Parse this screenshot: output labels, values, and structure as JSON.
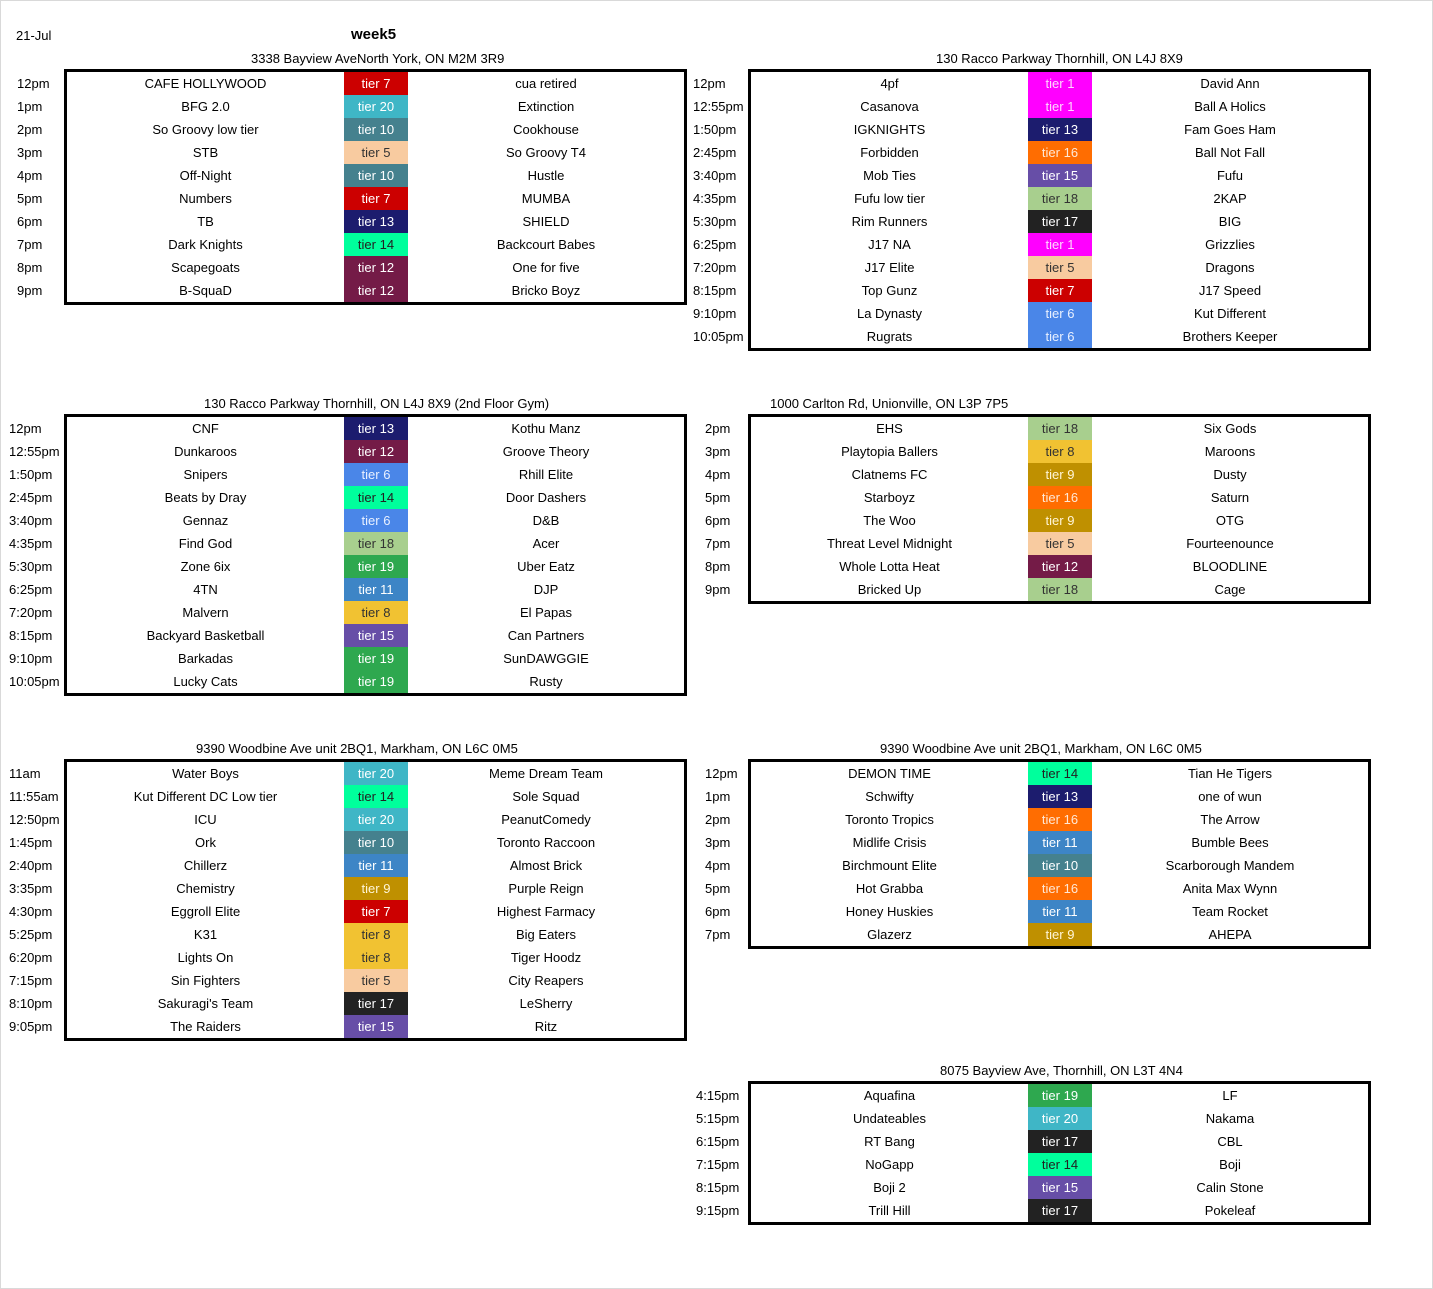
{
  "header": {
    "date": "21-Jul",
    "week": "week5"
  },
  "tier_colors": {
    "tier 1": "#ff00ff",
    "tier 5": "#f8cba0",
    "tier 6": "#4a86e8",
    "tier 7": "#cc0000",
    "tier 8": "#f1c232",
    "tier 9": "#bf9000",
    "tier 10": "#45818e",
    "tier 11": "#3d85c6",
    "tier 12": "#741b47",
    "tier 13": "#1c1c6e",
    "tier 14": "#00ff9c",
    "tier 15": "#674ea7",
    "tier 16": "#ff6d01",
    "tier 17": "#222222",
    "tier 18": "#a8cf8e",
    "tier 19": "#2ea84f",
    "tier 20": "#3fb6c6"
  },
  "venues": [
    {
      "address": "3338 Bayview AveNorth York, ON M2M 3R9",
      "games": [
        {
          "time": "12pm",
          "team1": "CAFE HOLLYWOOD",
          "tier": "tier 7",
          "team2": "cua retired"
        },
        {
          "time": "1pm",
          "team1": "BFG 2.0",
          "tier": "tier 20",
          "team2": "Extinction"
        },
        {
          "time": "2pm",
          "team1": "So Groovy low tier",
          "tier": "tier 10",
          "team2": "Cookhouse"
        },
        {
          "time": "3pm",
          "team1": "STB",
          "tier": "tier 5",
          "team2": "So Groovy T4"
        },
        {
          "time": "4pm",
          "team1": "Off-Night",
          "tier": "tier 10",
          "team2": "Hustle"
        },
        {
          "time": "5pm",
          "team1": "Numbers",
          "tier": "tier 7",
          "team2": "MUMBA"
        },
        {
          "time": "6pm",
          "team1": "TB",
          "tier": "tier 13",
          "team2": "SHIELD"
        },
        {
          "time": "7pm",
          "team1": "Dark Knights",
          "tier": "tier 14",
          "team2": "Backcourt Babes"
        },
        {
          "time": "8pm",
          "team1": "Scapegoats",
          "tier": "tier 12",
          "team2": "One for five"
        },
        {
          "time": "9pm",
          "team1": "B-SquaD",
          "tier": "tier 12",
          "team2": "Bricko Boyz"
        }
      ]
    },
    {
      "address": "130 Racco Parkway Thornhill, ON L4J 8X9",
      "games": [
        {
          "time": "12pm",
          "team1": "4pf",
          "tier": "tier 1",
          "team2": "David Ann"
        },
        {
          "time": "12:55pm",
          "team1": "Casanova",
          "tier": "tier 1",
          "team2": "Ball A Holics"
        },
        {
          "time": "1:50pm",
          "team1": "IGKNIGHTS",
          "tier": "tier 13",
          "team2": "Fam Goes Ham"
        },
        {
          "time": "2:45pm",
          "team1": "Forbidden",
          "tier": "tier 16",
          "team2": "Ball Not Fall"
        },
        {
          "time": "3:40pm",
          "team1": "Mob Ties",
          "tier": "tier 15",
          "team2": "Fufu"
        },
        {
          "time": "4:35pm",
          "team1": "Fufu low tier",
          "tier": "tier 18",
          "team2": "2KAP"
        },
        {
          "time": "5:30pm",
          "team1": "Rim Runners",
          "tier": "tier 17",
          "team2": "BIG"
        },
        {
          "time": "6:25pm",
          "team1": "J17 NA",
          "tier": "tier 1",
          "team2": "Grizzlies"
        },
        {
          "time": "7:20pm",
          "team1": "J17 Elite",
          "tier": "tier 5",
          "team2": "Dragons"
        },
        {
          "time": "8:15pm",
          "team1": "Top Gunz",
          "tier": "tier 7",
          "team2": "J17 Speed"
        },
        {
          "time": "9:10pm",
          "team1": "La Dynasty",
          "tier": "tier 6",
          "team2": "Kut Different"
        },
        {
          "time": "10:05pm",
          "team1": "Rugrats",
          "tier": "tier 6",
          "team2": "Brothers Keeper"
        }
      ]
    },
    {
      "address": "130 Racco Parkway Thornhill, ON L4J 8X9 (2nd Floor Gym)",
      "games": [
        {
          "time": "12pm",
          "team1": "CNF",
          "tier": "tier 13",
          "team2": "Kothu Manz"
        },
        {
          "time": "12:55pm",
          "team1": "Dunkaroos",
          "tier": "tier 12",
          "team2": "Groove Theory"
        },
        {
          "time": "1:50pm",
          "team1": "Snipers",
          "tier": "tier 6",
          "team2": "Rhill Elite"
        },
        {
          "time": "2:45pm",
          "team1": "Beats by Dray",
          "tier": "tier 14",
          "team2": "Door Dashers"
        },
        {
          "time": "3:40pm",
          "team1": "Gennaz",
          "tier": "tier 6",
          "team2": "D&B"
        },
        {
          "time": "4:35pm",
          "team1": "Find God",
          "tier": "tier 18",
          "team2": "Acer"
        },
        {
          "time": "5:30pm",
          "team1": "Zone 6ix",
          "tier": "tier 19",
          "team2": "Uber Eatz"
        },
        {
          "time": "6:25pm",
          "team1": "4TN",
          "tier": "tier 11",
          "team2": "DJP"
        },
        {
          "time": "7:20pm",
          "team1": "Malvern",
          "tier": "tier 8",
          "team2": "El Papas"
        },
        {
          "time": "8:15pm",
          "team1": "Backyard Basketball",
          "tier": "tier 15",
          "team2": "Can Partners"
        },
        {
          "time": "9:10pm",
          "team1": "Barkadas",
          "tier": "tier 19",
          "team2": "SunDAWGGIE"
        },
        {
          "time": "10:05pm",
          "team1": "Lucky Cats",
          "tier": "tier 19",
          "team2": "Rusty"
        }
      ]
    },
    {
      "address": "1000 Carlton Rd, Unionville, ON L3P 7P5",
      "games": [
        {
          "time": "2pm",
          "team1": "EHS",
          "tier": "tier 18",
          "team2": "Six Gods"
        },
        {
          "time": "3pm",
          "team1": "Playtopia Ballers",
          "tier": "tier 8",
          "team2": "Maroons"
        },
        {
          "time": "4pm",
          "team1": "Clatnems FC",
          "tier": "tier 9",
          "team2": "Dusty"
        },
        {
          "time": "5pm",
          "team1": "Starboyz",
          "tier": "tier 16",
          "team2": "Saturn"
        },
        {
          "time": "6pm",
          "team1": "The Woo",
          "tier": "tier 9",
          "team2": "OTG"
        },
        {
          "time": "7pm",
          "team1": "Threat Level Midnight",
          "tier": "tier 5",
          "team2": "Fourteenounce"
        },
        {
          "time": "8pm",
          "team1": "Whole Lotta Heat",
          "tier": "tier 12",
          "team2": "BLOODLINE"
        },
        {
          "time": "9pm",
          "team1": "Bricked Up",
          "tier": "tier 18",
          "team2": "Cage"
        }
      ]
    },
    {
      "address": "9390 Woodbine Ave unit 2BQ1, Markham, ON L6C 0M5",
      "games": [
        {
          "time": "11am",
          "team1": "Water Boys",
          "tier": "tier 20",
          "team2": "Meme Dream Team"
        },
        {
          "time": "11:55am",
          "team1": "Kut Different DC Low tier",
          "tier": "tier 14",
          "team2": "Sole Squad"
        },
        {
          "time": "12:50pm",
          "team1": "ICU",
          "tier": "tier 20",
          "team2": "PeanutComedy"
        },
        {
          "time": "1:45pm",
          "team1": "Ork",
          "tier": "tier 10",
          "team2": "Toronto Raccoon"
        },
        {
          "time": "2:40pm",
          "team1": "Chillerz",
          "tier": "tier 11",
          "team2": "Almost Brick"
        },
        {
          "time": "3:35pm",
          "team1": "Chemistry",
          "tier": "tier 9",
          "team2": "Purple Reign"
        },
        {
          "time": "4:30pm",
          "team1": "Eggroll Elite",
          "tier": "tier 7",
          "team2": "Highest Farmacy"
        },
        {
          "time": "5:25pm",
          "team1": "K31",
          "tier": "tier 8",
          "team2": "Big Eaters"
        },
        {
          "time": "6:20pm",
          "team1": "Lights On",
          "tier": "tier 8",
          "team2": "Tiger Hoodz"
        },
        {
          "time": "7:15pm",
          "team1": "Sin Fighters",
          "tier": "tier 5",
          "team2": "City Reapers"
        },
        {
          "time": "8:10pm",
          "team1": "Sakuragi's Team",
          "tier": "tier 17",
          "team2": "LeSherry"
        },
        {
          "time": "9:05pm",
          "team1": "The Raiders",
          "tier": "tier 15",
          "team2": "Ritz"
        }
      ]
    },
    {
      "address": "9390 Woodbine Ave unit 2BQ1, Markham, ON L6C 0M5",
      "games": [
        {
          "time": "12pm",
          "team1": "DEMON TIME",
          "tier": "tier 14",
          "team2": "Tian He Tigers"
        },
        {
          "time": "1pm",
          "team1": "Schwifty",
          "tier": "tier 13",
          "team2": "one of wun"
        },
        {
          "time": "2pm",
          "team1": "Toronto Tropics",
          "tier": "tier 16",
          "team2": "The Arrow"
        },
        {
          "time": "3pm",
          "team1": "Midlife Crisis",
          "tier": "tier 11",
          "team2": "Bumble Bees"
        },
        {
          "time": "4pm",
          "team1": "Birchmount Elite",
          "tier": "tier 10",
          "team2": "Scarborough Mandem"
        },
        {
          "time": "5pm",
          "team1": "Hot Grabba",
          "tier": "tier 16",
          "team2": "Anita Max Wynn"
        },
        {
          "time": "6pm",
          "team1": "Honey Huskies",
          "tier": "tier 11",
          "team2": "Team Rocket"
        },
        {
          "time": "7pm",
          "team1": "Glazerz",
          "tier": "tier 9",
          "team2": "AHEPA"
        }
      ]
    },
    {
      "address": "8075 Bayview Ave, Thornhill, ON L3T 4N4",
      "games": [
        {
          "time": "4:15pm",
          "team1": "Aquafina",
          "tier": "tier 19",
          "team2": "LF"
        },
        {
          "time": "5:15pm",
          "team1": "Undateables",
          "tier": "tier 20",
          "team2": "Nakama"
        },
        {
          "time": "6:15pm",
          "team1": "RT Bang",
          "tier": "tier 17",
          "team2": "CBL"
        },
        {
          "time": "7:15pm",
          "team1": "NoGapp",
          "tier": "tier 14",
          "team2": "Boji"
        },
        {
          "time": "8:15pm",
          "team1": "Boji 2",
          "tier": "tier 15",
          "team2": "Calin Stone"
        },
        {
          "time": "9:15pm",
          "team1": "Trill Hill",
          "tier": "tier 17",
          "team2": "Pokeleaf"
        }
      ]
    }
  ]
}
